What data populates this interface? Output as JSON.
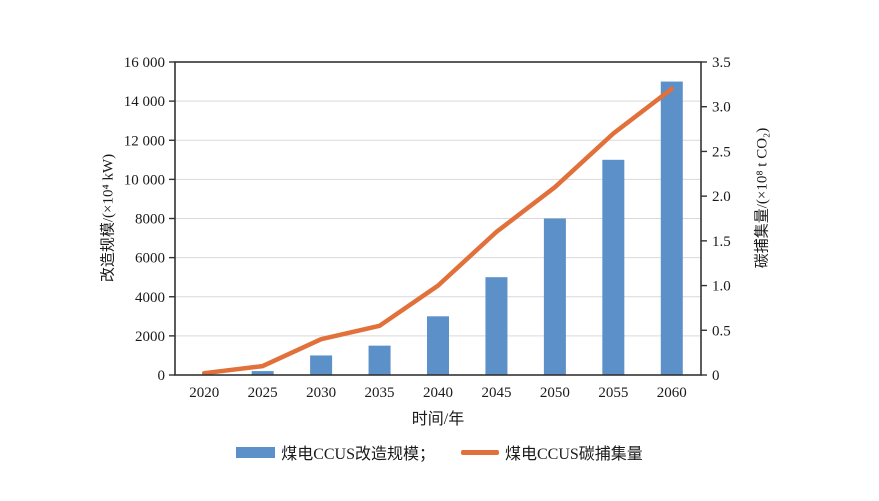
{
  "page": {
    "background": "#ffffff"
  },
  "chart_data": {
    "type": "bar",
    "title": "",
    "categories": [
      "2020",
      "2025",
      "2030",
      "2035",
      "2040",
      "2045",
      "2050",
      "2055",
      "2060"
    ],
    "series": [
      {
        "name": "煤电CCUS改造规模",
        "type": "bar",
        "axis": "left",
        "color": "#5b90c8",
        "values": [
          0,
          200,
          1000,
          1500,
          3000,
          5000,
          8000,
          11000,
          15000
        ]
      },
      {
        "name": "煤电CCUS碳捕集量",
        "type": "line",
        "axis": "right",
        "color": "#e2703a",
        "values": [
          0.02,
          0.1,
          0.4,
          0.55,
          1.0,
          1.6,
          2.1,
          2.7,
          3.2
        ]
      }
    ],
    "xlabel": "时间/年",
    "left_axis": {
      "label": "改造规模/(×10⁴ kW)",
      "min": 0,
      "max": 16000,
      "tick_step": 2000,
      "tick_labels": [
        "0",
        "2000",
        "4000",
        "6000",
        "8000",
        "10 000",
        "12 000",
        "14 000",
        "16 000"
      ]
    },
    "right_axis": {
      "label": "碳捕集量/(×10⁸ t CO₂)",
      "min": 0,
      "max": 3.5,
      "tick_step": 0.5,
      "tick_labels": [
        "0",
        "0.5",
        "1.0",
        "1.5",
        "2.0",
        "2.5",
        "3.0",
        "3.5"
      ]
    },
    "grid": "horizontal",
    "grid_color": "#d9d9d9",
    "axis_color": "#333333",
    "text_color": "#1a1a1a",
    "legend_position": "bottom"
  },
  "legend": {
    "items": [
      {
        "label": "煤电CCUS改造规模；",
        "swatch": "bar"
      },
      {
        "label": "煤电CCUS碳捕集量",
        "swatch": "line"
      }
    ]
  }
}
